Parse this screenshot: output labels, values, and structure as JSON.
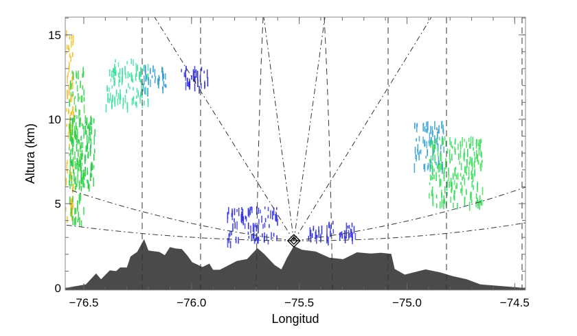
{
  "chart_data": {
    "type": "area",
    "title": "",
    "xlabel": "Longitud",
    "ylabel": "Altura (km)",
    "xlim": [
      -76.586,
      -74.45
    ],
    "ylim": [
      -0.12,
      16.05
    ],
    "xticks": [
      -76.5,
      -76.0,
      -75.5,
      -75.0,
      -74.5
    ],
    "xtick_labels": [
      "−76.5",
      "−76.0",
      "−75.5",
      "−75.0",
      "−74.5"
    ],
    "yticks": [
      0,
      5,
      10,
      15
    ],
    "ytick_labels": [
      "0",
      "5",
      "10",
      "15"
    ],
    "grid": false,
    "radar_site": {
      "lon": -75.525,
      "alt": 2.8
    },
    "terrain": {
      "color": "#4a4a4a",
      "lon": [
        -76.586,
        -76.49,
        -76.443,
        -76.42,
        -76.379,
        -76.35,
        -76.331,
        -76.3,
        -76.283,
        -76.252,
        -76.22,
        -76.2,
        -76.188,
        -76.15,
        -76.124,
        -76.1,
        -76.076,
        -76.045,
        -76.02,
        -75.997,
        -75.949,
        -75.917,
        -75.9,
        -75.869,
        -75.838,
        -75.79,
        -75.742,
        -75.694,
        -75.662,
        -75.615,
        -75.583,
        -75.557,
        -75.525,
        -75.487,
        -75.424,
        -75.36,
        -75.296,
        -75.232,
        -75.169,
        -75.121,
        -75.073,
        -75.057,
        -75.01,
        -74.914,
        -74.85,
        -74.787,
        -74.723,
        -74.659,
        -74.452
      ],
      "alt": [
        0,
        0.2,
        0.8,
        0.6,
        1.0,
        0.9,
        1.2,
        1.3,
        1.8,
        2.2,
        2.8,
        2.3,
        2.1,
        2.2,
        2.0,
        2.3,
        2.4,
        2.4,
        1.9,
        1.6,
        1.2,
        1.4,
        1.0,
        1.0,
        1.4,
        1.6,
        1.8,
        2.4,
        2.0,
        1.4,
        1.2,
        1.9,
        2.6,
        2.3,
        2.1,
        1.9,
        1.8,
        2.0,
        2.1,
        2.0,
        1.9,
        1.1,
        0.9,
        1.0,
        1.0,
        0.8,
        0.4,
        0.2,
        0
      ]
    },
    "echo_regions": [
      {
        "lon": [
          -76.586,
          -76.55
        ],
        "alt": [
          3.9,
          15.3
        ],
        "color": "#f0c020"
      },
      {
        "lon": [
          -76.57,
          -76.45
        ],
        "alt": [
          6.0,
          10.3
        ],
        "color": "#22cc44"
      },
      {
        "lon": [
          -76.57,
          -76.5
        ],
        "alt": [
          3.9,
          13.2
        ],
        "color": "#3ad44a"
      },
      {
        "lon": [
          -76.4,
          -76.2
        ],
        "alt": [
          10.8,
          13.6
        ],
        "color": "#3fe0a0"
      },
      {
        "lon": [
          -76.23,
          -76.12
        ],
        "alt": [
          11.8,
          13.3
        ],
        "color": "#2f9ed0"
      },
      {
        "lon": [
          -76.05,
          -75.92
        ],
        "alt": [
          11.9,
          13.2
        ],
        "color": "#2a2ad8"
      },
      {
        "lon": [
          -75.84,
          -75.6
        ],
        "alt": [
          3.7,
          4.9
        ],
        "color": "#3030e0"
      },
      {
        "lon": [
          -75.84,
          -75.6
        ],
        "alt": [
          2.8,
          3.4
        ],
        "color": "#3030e0"
      },
      {
        "lon": [
          -75.46,
          -75.24
        ],
        "alt": [
          3.0,
          4.1
        ],
        "color": "#3030e0"
      },
      {
        "lon": [
          -74.97,
          -74.83
        ],
        "alt": [
          7.2,
          9.9
        ],
        "color": "#2f9ed0"
      },
      {
        "lon": [
          -74.9,
          -74.65
        ],
        "alt": [
          5.0,
          9.0
        ],
        "color": "#33dd55"
      }
    ]
  }
}
